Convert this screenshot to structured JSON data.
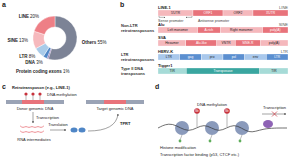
{
  "chart_data": {
    "type": "pie",
    "categories": [
      "Others",
      "Protein coding exons",
      "DNA",
      "LTR",
      "SINE",
      "LINE"
    ],
    "values": [
      55,
      1,
      3,
      8,
      13,
      20
    ],
    "value_labels": [
      "55%",
      "1%",
      "3%",
      "8%",
      "13%",
      "20%"
    ],
    "colors": [
      "#7c8396",
      "#7a5aa6",
      "#4f86c6",
      "#a9cbe9",
      "#f6b9bd",
      "#ee7f86"
    ]
  },
  "diagram": {
    "panel_labels": [
      "a",
      "b",
      "c",
      "d"
    ],
    "b": {
      "groups": [
        {
          "label": "Non-LTR retrotransposons",
          "rows": [
            {
              "name": "LINE-1",
              "class": "LINE",
              "segments": [
                "5′UTR",
                "ORF1",
                "ORF2",
                "3′UTR"
              ],
              "notes": [
                "Sense promoter",
                "Antisense promoter"
              ]
            },
            {
              "name": "Alu",
              "class": "SINE",
              "segments": [
                "Left monomer",
                "A-rich",
                "Right monomer",
                "poly(A)"
              ]
            },
            {
              "name": "SVA",
              "segments": [
                "Hexamer",
                "Alu-like",
                "VNTR",
                "SINE-R",
                "poly(A)"
              ]
            }
          ]
        },
        {
          "label": "LTR retrotransposons",
          "rows": [
            {
              "name": "HERV-K",
              "class": "LTR",
              "segments": [
                "LTR",
                "gag",
                "pro",
                "pol",
                "env",
                "LTR"
              ]
            }
          ]
        },
        {
          "label": "Type II DNA transposons",
          "rows": [
            {
              "name": "Tigger1",
              "segments": [
                "TIR",
                "Transposase",
                "TIR"
              ]
            }
          ]
        }
      ]
    },
    "c": {
      "title": "Retrotransposon (e.g., LINE-1)",
      "methylation": "DNA methylation",
      "donor": "Donor genomic DNA",
      "target": "Target genomic DNA",
      "transcription": "Transcription",
      "rna": "RNA intermediates",
      "translation": "Translation",
      "insertion": "TPRT"
    },
    "d": {
      "methylation": "DNA methylation",
      "mark": "Me",
      "histone": "Histone modification",
      "tf": "Transcription factor binding (p53, CTCF etc.)",
      "transcription": "Transcription"
    }
  }
}
